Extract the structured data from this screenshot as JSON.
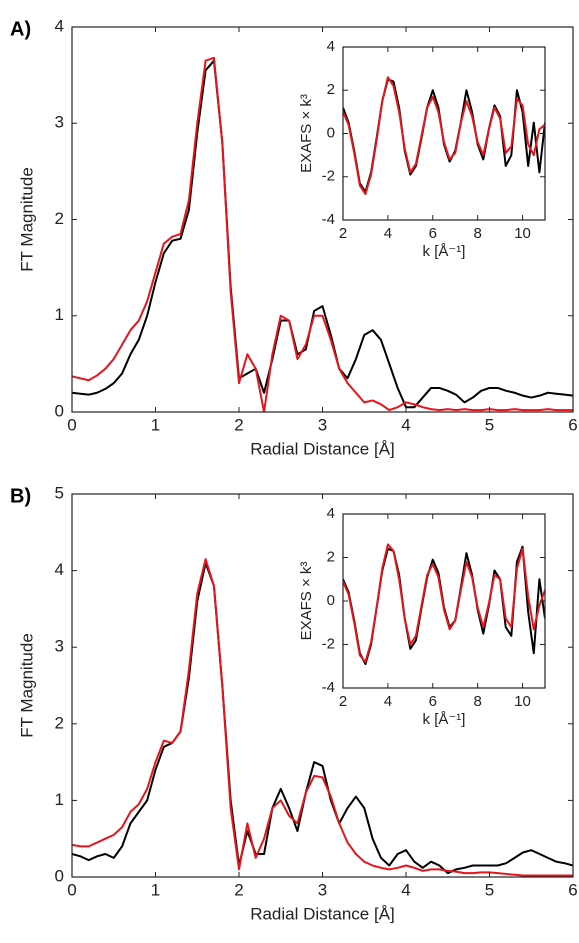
{
  "chart_data": [
    {
      "type": "line",
      "panel_label": "A)",
      "xlabel": "Radial Distance [Å]",
      "ylabel": "FT Magnitude",
      "xlim": [
        0,
        6
      ],
      "ylim": [
        0,
        4
      ],
      "xticks": [
        0,
        1,
        2,
        3,
        4,
        5,
        6
      ],
      "yticks": [
        0,
        1,
        2,
        3,
        4
      ],
      "x": [
        0,
        0.1,
        0.2,
        0.3,
        0.4,
        0.5,
        0.6,
        0.7,
        0.8,
        0.9,
        1,
        1.1,
        1.2,
        1.3,
        1.4,
        1.5,
        1.6,
        1.7,
        1.8,
        1.9,
        2,
        2.1,
        2.2,
        2.3,
        2.4,
        2.5,
        2.6,
        2.7,
        2.8,
        2.9,
        3,
        3.1,
        3.2,
        3.3,
        3.4,
        3.5,
        3.6,
        3.7,
        3.8,
        3.9,
        4,
        4.1,
        4.2,
        4.3,
        4.4,
        4.5,
        4.6,
        4.7,
        4.8,
        4.9,
        5,
        5.1,
        5.2,
        5.3,
        5.4,
        5.5,
        5.6,
        5.7,
        5.8,
        5.9,
        6
      ],
      "series": [
        {
          "color": "#000000",
          "values": [
            0.2,
            0.19,
            0.18,
            0.2,
            0.24,
            0.3,
            0.4,
            0.6,
            0.75,
            1.0,
            1.35,
            1.65,
            1.78,
            1.8,
            2.1,
            2.9,
            3.55,
            3.65,
            2.8,
            1.3,
            0.35,
            0.4,
            0.45,
            0.2,
            0.55,
            0.95,
            0.95,
            0.6,
            0.65,
            1.05,
            1.1,
            0.8,
            0.45,
            0.35,
            0.55,
            0.8,
            0.85,
            0.75,
            0.5,
            0.25,
            0.05,
            0.05,
            0.15,
            0.25,
            0.25,
            0.22,
            0.18,
            0.1,
            0.15,
            0.22,
            0.25,
            0.25,
            0.22,
            0.2,
            0.17,
            0.15,
            0.17,
            0.2,
            0.19,
            0.18,
            0.17
          ]
        },
        {
          "color": "#e8141c",
          "values": [
            0.37,
            0.35,
            0.33,
            0.38,
            0.45,
            0.55,
            0.7,
            0.85,
            0.95,
            1.15,
            1.45,
            1.75,
            1.82,
            1.85,
            2.2,
            3.0,
            3.65,
            3.68,
            2.8,
            1.25,
            0.3,
            0.6,
            0.45,
            0.0,
            0.6,
            1.0,
            0.95,
            0.55,
            0.7,
            1.0,
            1.0,
            0.75,
            0.45,
            0.3,
            0.2,
            0.1,
            0.12,
            0.08,
            0.02,
            0.05,
            0.1,
            0.08,
            0.05,
            0.03,
            0.02,
            0.03,
            0.02,
            0.03,
            0.02,
            0.02,
            0.03,
            0.02,
            0.02,
            0.03,
            0.02,
            0.02,
            0.02,
            0.03,
            0.02,
            0.02,
            0.02
          ]
        }
      ]
    },
    {
      "type": "line",
      "xlabel": "k [Å⁻¹]",
      "ylabel": "EXAFS × k³",
      "xlim": [
        2,
        11
      ],
      "ylim": [
        -4,
        4
      ],
      "xticks": [
        2,
        4,
        6,
        8,
        10
      ],
      "yticks": [
        -4,
        -2,
        0,
        2,
        4
      ],
      "x": [
        2,
        2.25,
        2.5,
        2.75,
        3,
        3.25,
        3.5,
        3.75,
        4,
        4.25,
        4.5,
        4.75,
        5,
        5.25,
        5.5,
        5.75,
        6,
        6.25,
        6.5,
        6.75,
        7,
        7.25,
        7.5,
        7.75,
        8,
        8.25,
        8.5,
        8.75,
        9,
        9.25,
        9.5,
        9.75,
        10,
        10.25,
        10.5,
        10.75,
        11
      ],
      "series": [
        {
          "color": "#000000",
          "values": [
            1.2,
            0.5,
            -0.8,
            -2.3,
            -2.7,
            -1.8,
            -0.2,
            1.5,
            2.5,
            2.4,
            1.2,
            -0.8,
            -1.9,
            -1.5,
            -0.2,
            1.2,
            2.0,
            1.2,
            -0.5,
            -1.3,
            -0.8,
            0.5,
            2.0,
            1.0,
            -0.5,
            -1.2,
            0.2,
            1.3,
            0.8,
            -1.5,
            -1.0,
            2.0,
            1.0,
            -1.5,
            0.5,
            -1.8,
            0.5
          ]
        },
        {
          "color": "#e8141c",
          "values": [
            1.0,
            0.4,
            -0.9,
            -2.4,
            -2.8,
            -1.9,
            -0.3,
            1.5,
            2.6,
            2.2,
            1.0,
            -0.7,
            -1.8,
            -1.4,
            -0.1,
            1.2,
            1.7,
            1.0,
            -0.4,
            -1.2,
            -0.9,
            0.5,
            1.5,
            0.8,
            -0.4,
            -1.0,
            0.2,
            1.2,
            0.7,
            -0.9,
            -0.6,
            1.6,
            1.3,
            -0.5,
            -1.0,
            0.2,
            0.4
          ]
        }
      ]
    },
    {
      "type": "line",
      "panel_label": "B)",
      "xlabel": "Radial Distance [Å]",
      "ylabel": "FT Magnitude",
      "xlim": [
        0,
        6
      ],
      "ylim": [
        0,
        5
      ],
      "xticks": [
        0,
        1,
        2,
        3,
        4,
        5,
        6
      ],
      "yticks": [
        0,
        1,
        2,
        3,
        4,
        5
      ],
      "x": [
        0,
        0.1,
        0.2,
        0.3,
        0.4,
        0.5,
        0.6,
        0.7,
        0.8,
        0.9,
        1,
        1.1,
        1.2,
        1.3,
        1.4,
        1.5,
        1.6,
        1.7,
        1.8,
        1.9,
        2,
        2.1,
        2.2,
        2.3,
        2.4,
        2.5,
        2.6,
        2.7,
        2.8,
        2.9,
        3,
        3.1,
        3.2,
        3.3,
        3.4,
        3.5,
        3.6,
        3.7,
        3.8,
        3.9,
        4,
        4.1,
        4.2,
        4.3,
        4.4,
        4.5,
        4.6,
        4.7,
        4.8,
        4.9,
        5,
        5.1,
        5.2,
        5.3,
        5.4,
        5.5,
        5.6,
        5.7,
        5.8,
        5.9,
        6
      ],
      "series": [
        {
          "color": "#000000",
          "values": [
            0.3,
            0.27,
            0.22,
            0.27,
            0.3,
            0.25,
            0.4,
            0.7,
            0.85,
            1.0,
            1.4,
            1.7,
            1.75,
            1.9,
            2.6,
            3.6,
            4.1,
            3.8,
            2.5,
            1.0,
            0.15,
            0.6,
            0.3,
            0.3,
            0.9,
            1.15,
            0.9,
            0.6,
            1.1,
            1.5,
            1.45,
            1.0,
            0.7,
            0.9,
            1.05,
            0.9,
            0.5,
            0.25,
            0.15,
            0.3,
            0.35,
            0.2,
            0.12,
            0.2,
            0.15,
            0.05,
            0.1,
            0.12,
            0.15,
            0.15,
            0.15,
            0.15,
            0.18,
            0.25,
            0.32,
            0.35,
            0.3,
            0.25,
            0.2,
            0.18,
            0.15
          ]
        },
        {
          "color": "#e8141c",
          "values": [
            0.42,
            0.4,
            0.4,
            0.45,
            0.5,
            0.55,
            0.65,
            0.85,
            0.95,
            1.15,
            1.5,
            1.78,
            1.75,
            1.9,
            2.7,
            3.7,
            4.15,
            3.8,
            2.5,
            0.9,
            0.1,
            0.7,
            0.25,
            0.5,
            0.9,
            1.0,
            0.8,
            0.7,
            1.1,
            1.32,
            1.3,
            1.05,
            0.7,
            0.45,
            0.3,
            0.2,
            0.15,
            0.12,
            0.1,
            0.12,
            0.15,
            0.12,
            0.08,
            0.1,
            0.1,
            0.08,
            0.07,
            0.05,
            0.05,
            0.06,
            0.06,
            0.05,
            0.04,
            0.03,
            0.02,
            0.02,
            0.02,
            0.02,
            0.02,
            0.02,
            0.02
          ]
        }
      ]
    },
    {
      "type": "line",
      "xlabel": "k [Å⁻¹]",
      "ylabel": "EXAFS × k³",
      "xlim": [
        2,
        11
      ],
      "ylim": [
        -4,
        4
      ],
      "xticks": [
        2,
        4,
        6,
        8,
        10
      ],
      "yticks": [
        -4,
        -2,
        0,
        2,
        4
      ],
      "x": [
        2,
        2.25,
        2.5,
        2.75,
        3,
        3.25,
        3.5,
        3.75,
        4,
        4.25,
        4.5,
        4.75,
        5,
        5.25,
        5.5,
        5.75,
        6,
        6.25,
        6.5,
        6.75,
        7,
        7.25,
        7.5,
        7.75,
        8,
        8.25,
        8.5,
        8.75,
        9,
        9.25,
        9.5,
        9.75,
        10,
        10.25,
        10.5,
        10.75,
        11
      ],
      "series": [
        {
          "color": "#000000",
          "values": [
            1.0,
            0.4,
            -0.9,
            -2.4,
            -2.9,
            -2.0,
            -0.3,
            1.4,
            2.4,
            2.3,
            1.2,
            -0.8,
            -2.2,
            -1.8,
            -0.3,
            1.1,
            1.9,
            1.3,
            -0.3,
            -1.2,
            -0.9,
            0.6,
            2.2,
            1.2,
            -0.4,
            -1.5,
            -0.2,
            1.4,
            1.0,
            -1.2,
            -1.6,
            1.8,
            2.5,
            -0.5,
            -2.4,
            1.0,
            -0.8
          ]
        },
        {
          "color": "#e8141c",
          "values": [
            0.9,
            0.3,
            -1.0,
            -2.5,
            -2.8,
            -1.9,
            -0.3,
            1.5,
            2.6,
            2.3,
            1.0,
            -0.8,
            -2.0,
            -1.6,
            -0.2,
            1.2,
            1.7,
            1.1,
            -0.4,
            -1.3,
            -0.9,
            0.5,
            1.8,
            1.1,
            -0.3,
            -1.2,
            -0.1,
            1.2,
            1.0,
            -0.8,
            -1.2,
            1.5,
            2.4,
            0.2,
            -1.3,
            -0.2,
            0.5
          ]
        }
      ]
    }
  ]
}
